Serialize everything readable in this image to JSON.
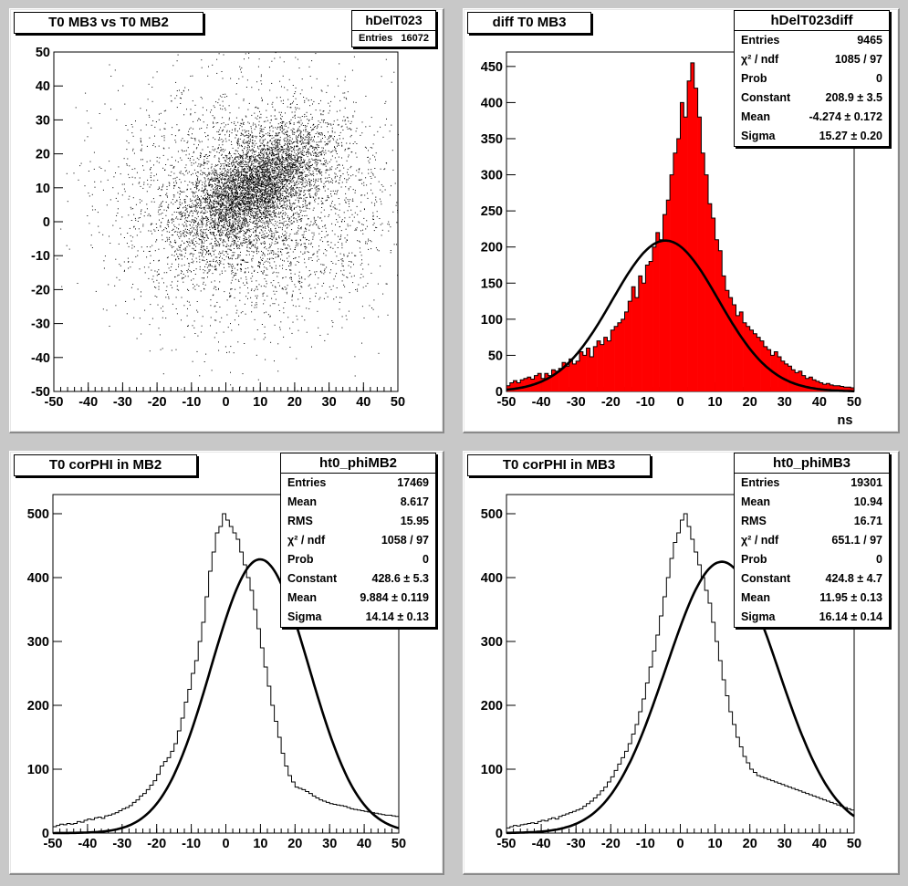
{
  "pads": [
    {
      "title": "T0 MB3 vs T0 MB2",
      "stats": {
        "name": "hDelT023",
        "rows": [
          {
            "label": "Entries",
            "value": "16072"
          }
        ]
      }
    },
    {
      "title": "diff T0 MB3",
      "xlabel": "ns",
      "stats": {
        "name": "hDelT023diff",
        "rows": [
          {
            "label": "Entries",
            "value": "9465"
          },
          {
            "label": "χ² / ndf",
            "value": "1085 / 97"
          },
          {
            "label": "Prob",
            "value": "0"
          },
          {
            "label": "Constant",
            "value": "208.9 ± 3.5"
          },
          {
            "label": "Mean",
            "value": "-4.274 ± 0.172"
          },
          {
            "label": "Sigma",
            "value": "15.27 ± 0.20"
          }
        ]
      }
    },
    {
      "title": "T0 corPHI in MB2",
      "stats": {
        "name": "ht0_phiMB2",
        "rows": [
          {
            "label": "Entries",
            "value": "17469"
          },
          {
            "label": "Mean",
            "value": "8.617"
          },
          {
            "label": "RMS",
            "value": "15.95"
          },
          {
            "label": "χ² / ndf",
            "value": "1058 / 97"
          },
          {
            "label": "Prob",
            "value": "0"
          },
          {
            "label": "Constant",
            "value": "428.6 ± 5.3"
          },
          {
            "label": "Mean",
            "value": "9.884 ± 0.119"
          },
          {
            "label": "Sigma",
            "value": "14.14 ± 0.13"
          }
        ]
      }
    },
    {
      "title": "T0 corPHI in MB3",
      "stats": {
        "name": "ht0_phiMB3",
        "rows": [
          {
            "label": "Entries",
            "value": "19301"
          },
          {
            "label": "Mean",
            "value": "10.94"
          },
          {
            "label": "RMS",
            "value": "16.71"
          },
          {
            "label": "χ² / ndf",
            "value": "651.1 / 97"
          },
          {
            "label": "Prob",
            "value": "0"
          },
          {
            "label": "Constant",
            "value": "424.8 ± 4.7"
          },
          {
            "label": "Mean",
            "value": "11.95 ± 0.13"
          },
          {
            "label": "Sigma",
            "value": "16.14 ± 0.14"
          }
        ]
      }
    }
  ],
  "chart_data": [
    {
      "type": "scatter",
      "title": "T0 MB3 vs T0 MB2",
      "xlim": [
        -50,
        50
      ],
      "ylim": [
        -50,
        50
      ],
      "xticks": [
        -50,
        -40,
        -30,
        -20,
        -10,
        0,
        10,
        20,
        30,
        40,
        50
      ],
      "yticks": [
        -50,
        -40,
        -30,
        -20,
        -10,
        0,
        10,
        20,
        30,
        40,
        50
      ],
      "entries": 16072,
      "components": [
        {
          "fraction": 0.55,
          "mean_x": 8,
          "mean_y": 10,
          "sigma_major": 12,
          "sigma_minor": 6,
          "angle_deg": 40
        },
        {
          "fraction": 0.45,
          "mean_x": 8,
          "mean_y": 5,
          "sigma_major": 20,
          "sigma_minor": 18,
          "angle_deg": 0
        }
      ],
      "marker_color": "#000000"
    },
    {
      "type": "bar",
      "title": "diff T0 MB3",
      "xlabel": "ns",
      "xlim": [
        -50,
        50
      ],
      "ylim": [
        0,
        470
      ],
      "xticks": [
        -50,
        -40,
        -30,
        -20,
        -10,
        0,
        10,
        20,
        30,
        40,
        50
      ],
      "yticks": [
        0,
        50,
        100,
        150,
        200,
        250,
        300,
        350,
        400,
        450
      ],
      "bin_width": 1,
      "fill_color": "#ff0000",
      "values": [
        8,
        12,
        15,
        12,
        16,
        18,
        20,
        17,
        22,
        25,
        18,
        25,
        22,
        30,
        28,
        32,
        40,
        35,
        45,
        38,
        42,
        55,
        50,
        60,
        48,
        62,
        70,
        65,
        75,
        70,
        85,
        90,
        95,
        100,
        110,
        125,
        145,
        130,
        160,
        150,
        175,
        180,
        200,
        220,
        210,
        245,
        265,
        300,
        330,
        350,
        400,
        380,
        430,
        455,
        420,
        380,
        330,
        300,
        260,
        240,
        210,
        195,
        160,
        140,
        130,
        120,
        105,
        110,
        95,
        90,
        85,
        80,
        75,
        70,
        62,
        58,
        50,
        55,
        48,
        42,
        38,
        35,
        30,
        26,
        28,
        22,
        18,
        20,
        16,
        14,
        12,
        10,
        11,
        9,
        8,
        8,
        7,
        6,
        6,
        5
      ],
      "fit": {
        "constant": 208.9,
        "mean": -4.274,
        "sigma": 15.27,
        "color": "#000000"
      }
    },
    {
      "type": "line",
      "title": "T0 corPHI in MB2",
      "xlim": [
        -50,
        50
      ],
      "ylim": [
        0,
        530
      ],
      "xticks": [
        -50,
        -40,
        -30,
        -20,
        -10,
        0,
        10,
        20,
        30,
        40,
        50
      ],
      "yticks": [
        0,
        100,
        200,
        300,
        400,
        500
      ],
      "bin_width": 1,
      "values": [
        10,
        12,
        14,
        13,
        15,
        14,
        15,
        18,
        17,
        20,
        22,
        21,
        24,
        25,
        23,
        27,
        28,
        30,
        32,
        35,
        38,
        40,
        43,
        48,
        52,
        58,
        62,
        68,
        75,
        82,
        92,
        105,
        112,
        118,
        128,
        140,
        160,
        180,
        205,
        225,
        250,
        270,
        300,
        330,
        370,
        410,
        440,
        470,
        480,
        500,
        490,
        480,
        470,
        460,
        440,
        420,
        400,
        380,
        350,
        320,
        290,
        260,
        230,
        200,
        175,
        150,
        125,
        105,
        90,
        80,
        72,
        70,
        68,
        65,
        62,
        58,
        55,
        52,
        50,
        48,
        46,
        45,
        44,
        43,
        42,
        40,
        38,
        37,
        36,
        35,
        34,
        33,
        32,
        31,
        30,
        29,
        28,
        28,
        27,
        26
      ],
      "fit": {
        "constant": 428.6,
        "mean": 9.884,
        "sigma": 14.14,
        "color": "#000000"
      }
    },
    {
      "type": "line",
      "title": "T0 corPHI in MB3",
      "xlim": [
        -50,
        50
      ],
      "ylim": [
        0,
        530
      ],
      "xticks": [
        -50,
        -40,
        -30,
        -20,
        -10,
        0,
        10,
        20,
        30,
        40,
        50
      ],
      "yticks": [
        0,
        100,
        200,
        300,
        400,
        500
      ],
      "bin_width": 1,
      "values": [
        8,
        10,
        12,
        11,
        13,
        14,
        15,
        16,
        15,
        18,
        20,
        19,
        22,
        24,
        22,
        26,
        28,
        30,
        32,
        34,
        36,
        38,
        42,
        46,
        50,
        55,
        60,
        66,
        72,
        80,
        88,
        98,
        108,
        118,
        128,
        140,
        155,
        170,
        190,
        210,
        235,
        260,
        285,
        310,
        340,
        370,
        400,
        430,
        455,
        470,
        490,
        500,
        480,
        460,
        440,
        420,
        400,
        380,
        360,
        330,
        300,
        270,
        240,
        215,
        190,
        170,
        150,
        135,
        120,
        110,
        100,
        95,
        90,
        88,
        86,
        84,
        82,
        80,
        78,
        76,
        74,
        72,
        70,
        68,
        66,
        64,
        62,
        60,
        58,
        56,
        54,
        52,
        50,
        48,
        46,
        44,
        42,
        40,
        38,
        36
      ],
      "fit": {
        "constant": 424.8,
        "mean": 11.95,
        "sigma": 16.14,
        "color": "#000000"
      }
    }
  ]
}
